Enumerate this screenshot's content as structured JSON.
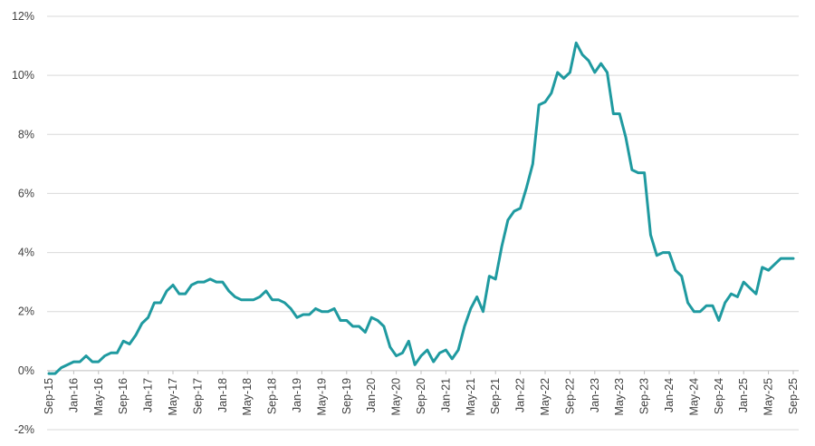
{
  "chart_data": {
    "type": "line",
    "title": "",
    "xlabel": "",
    "ylabel": "",
    "ylim": [
      -2,
      12
    ],
    "yticks": [
      -2,
      0,
      2,
      4,
      6,
      8,
      10,
      12
    ],
    "ytick_labels": [
      "-2%",
      "0%",
      "2%",
      "4%",
      "6%",
      "8%",
      "10%",
      "12%"
    ],
    "xlim": [
      "2015-09",
      "2025-09"
    ],
    "xtick_labels": [
      "Sep-15",
      "Jan-16",
      "May-16",
      "Sep-16",
      "Jan-17",
      "May-17",
      "Sep-17",
      "Jan-18",
      "May-18",
      "Sep-18",
      "Jan-19",
      "May-19",
      "Sep-19",
      "Jan-20",
      "May-20",
      "Sep-20",
      "Jan-21",
      "May-21",
      "Sep-21",
      "Jan-22",
      "May-22",
      "Sep-22",
      "Jan-23",
      "May-23",
      "Sep-23",
      "Jan-24",
      "May-24",
      "Sep-24",
      "Jan-25",
      "May-25",
      "Sep-25"
    ],
    "grid": true,
    "legend": "none",
    "series_color": "#1f9aa0",
    "series": [
      {
        "x": [
          "2015-09",
          "2015-10",
          "2015-11",
          "2015-12",
          "2016-01",
          "2016-02",
          "2016-03",
          "2016-04",
          "2016-05",
          "2016-06",
          "2016-07",
          "2016-08",
          "2016-09",
          "2016-10",
          "2016-11",
          "2016-12",
          "2017-01",
          "2017-02",
          "2017-03",
          "2017-04",
          "2017-05",
          "2017-06",
          "2017-07",
          "2017-08",
          "2017-09",
          "2017-10",
          "2017-11",
          "2017-12",
          "2018-01",
          "2018-02",
          "2018-03",
          "2018-04",
          "2018-05",
          "2018-06",
          "2018-07",
          "2018-08",
          "2018-09",
          "2018-10",
          "2018-11",
          "2018-12",
          "2019-01",
          "2019-02",
          "2019-03",
          "2019-04",
          "2019-05",
          "2019-06",
          "2019-07",
          "2019-08",
          "2019-09",
          "2019-10",
          "2019-11",
          "2019-12",
          "2020-01",
          "2020-02",
          "2020-03",
          "2020-04",
          "2020-05",
          "2020-06",
          "2020-07",
          "2020-08",
          "2020-09",
          "2020-10",
          "2020-11",
          "2020-12",
          "2021-01",
          "2021-02",
          "2021-03",
          "2021-04",
          "2021-05",
          "2021-06",
          "2021-07",
          "2021-08",
          "2021-09",
          "2021-10",
          "2021-11",
          "2021-12",
          "2022-01",
          "2022-02",
          "2022-03",
          "2022-04",
          "2022-05",
          "2022-06",
          "2022-07",
          "2022-08",
          "2022-09",
          "2022-10",
          "2022-11",
          "2022-12",
          "2023-01",
          "2023-02",
          "2023-03",
          "2023-04",
          "2023-05",
          "2023-06",
          "2023-07",
          "2023-08",
          "2023-09",
          "2023-10",
          "2023-11",
          "2023-12",
          "2024-01",
          "2024-02",
          "2024-03",
          "2024-04",
          "2024-05",
          "2024-06",
          "2024-07",
          "2024-08",
          "2024-09",
          "2024-10",
          "2024-11",
          "2024-12",
          "2025-01",
          "2025-02",
          "2025-03",
          "2025-04",
          "2025-05",
          "2025-06",
          "2025-07",
          "2025-08",
          "2025-09"
        ],
        "values": [
          -0.1,
          -0.1,
          0.1,
          0.2,
          0.3,
          0.3,
          0.5,
          0.3,
          0.3,
          0.5,
          0.6,
          0.6,
          1.0,
          0.9,
          1.2,
          1.6,
          1.8,
          2.3,
          2.3,
          2.7,
          2.9,
          2.6,
          2.6,
          2.9,
          3.0,
          3.0,
          3.1,
          3.0,
          3.0,
          2.7,
          2.5,
          2.4,
          2.4,
          2.4,
          2.5,
          2.7,
          2.4,
          2.4,
          2.3,
          2.1,
          1.8,
          1.9,
          1.9,
          2.1,
          2.0,
          2.0,
          2.1,
          1.7,
          1.7,
          1.5,
          1.5,
          1.3,
          1.8,
          1.7,
          1.5,
          0.8,
          0.5,
          0.6,
          1.0,
          0.2,
          0.5,
          0.7,
          0.3,
          0.6,
          0.7,
          0.4,
          0.7,
          1.5,
          2.1,
          2.5,
          2.0,
          3.2,
          3.1,
          4.2,
          5.1,
          5.4,
          5.5,
          6.2,
          7.0,
          9.0,
          9.1,
          9.4,
          10.1,
          9.9,
          10.1,
          11.1,
          10.7,
          10.5,
          10.1,
          10.4,
          10.1,
          8.7,
          8.7,
          7.9,
          6.8,
          6.7,
          6.7,
          4.6,
          3.9,
          4.0,
          4.0,
          3.4,
          3.2,
          2.3,
          2.0,
          2.0,
          2.2,
          2.2,
          1.7,
          2.3,
          2.6,
          2.5,
          3.0,
          2.8,
          2.6,
          3.5,
          3.4,
          3.6,
          3.8,
          3.8,
          3.8
        ]
      }
    ]
  }
}
